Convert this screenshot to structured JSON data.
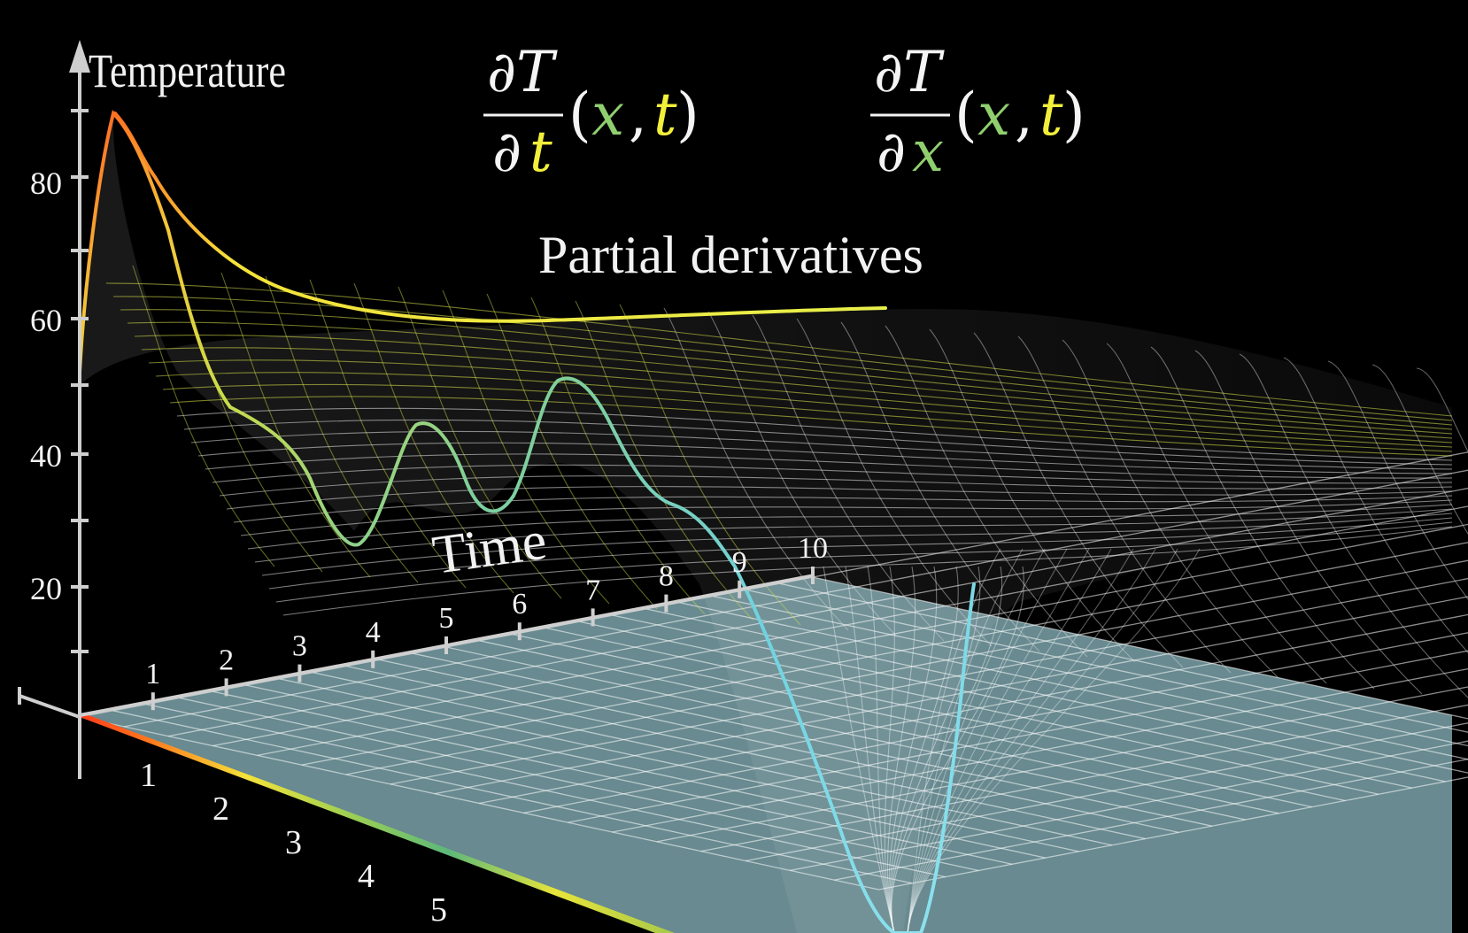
{
  "title": "Partial derivatives",
  "formula_t": {
    "numerator": "∂T",
    "denominator_d": "∂",
    "denominator_var": "t",
    "open": "(",
    "x": "x",
    "comma": ",",
    "t": "t",
    "close": ")"
  },
  "formula_x": {
    "numerator": "∂T",
    "denominator_d": "∂",
    "denominator_var": "x",
    "open": "(",
    "x": "x",
    "comma": ",",
    "t": "t",
    "close": ")"
  },
  "axes": {
    "temperature_label": "Temperature",
    "time_label": "Time",
    "temperature_ticks": [
      "20",
      "40",
      "60",
      "80"
    ],
    "time_ticks": [
      "1",
      "2",
      "3",
      "4",
      "5",
      "6",
      "7",
      "8",
      "9",
      "10"
    ],
    "x_ticks": [
      "1",
      "2",
      "3",
      "4",
      "5"
    ]
  },
  "colors": {
    "background": "#000000",
    "x_symbol": "#8fcf6e",
    "t_symbol": "#f2ef3b",
    "plane": "#7fa8b0",
    "grid": "#ffffff",
    "curve_hot": "#ff5a1f",
    "curve_warm": "#f2e23b",
    "curve_cool": "#6fd2e0"
  }
}
